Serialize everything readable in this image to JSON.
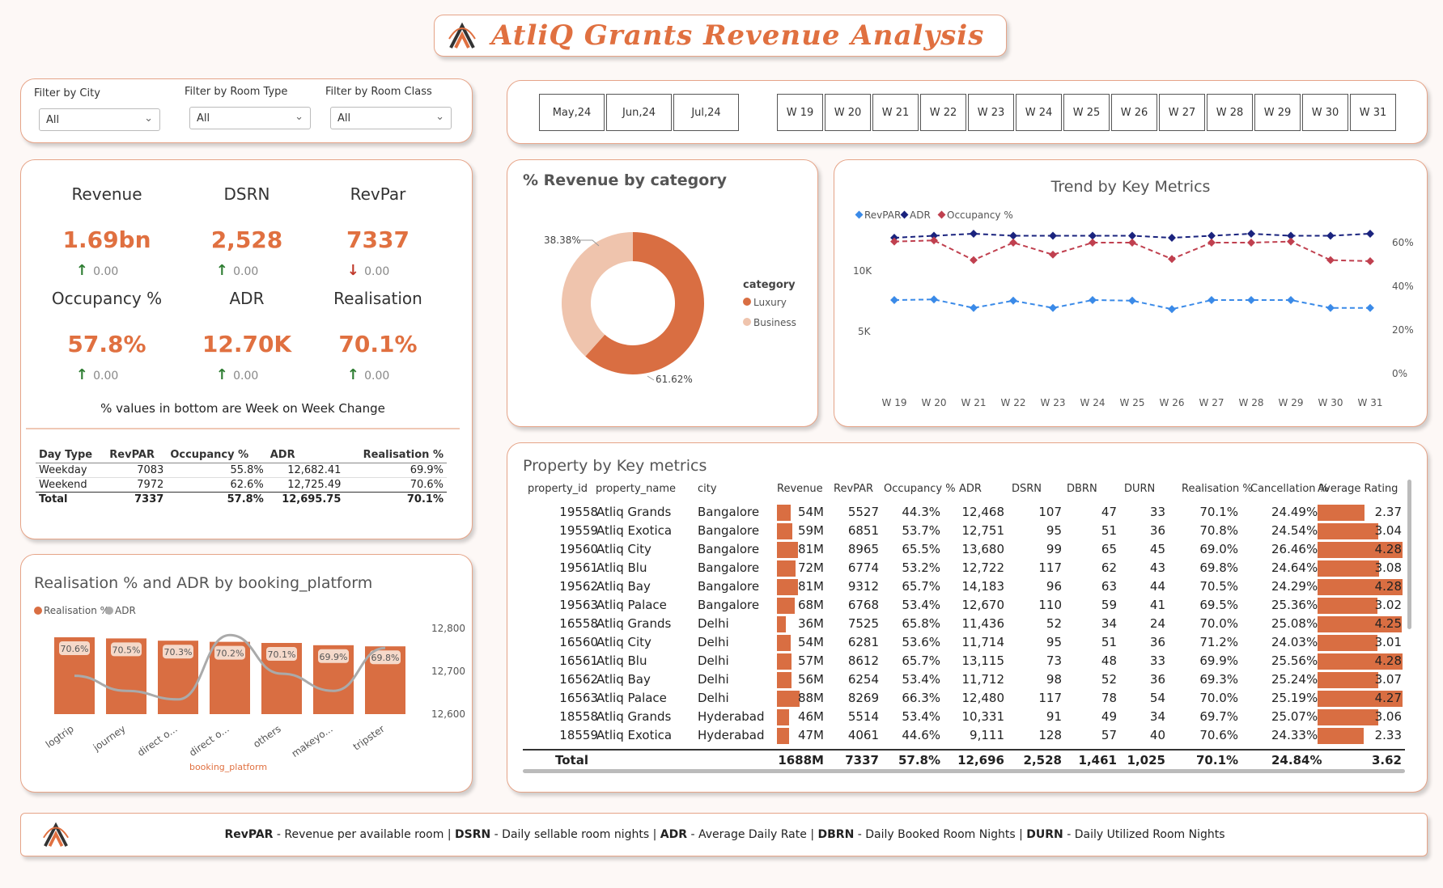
{
  "title": "AtliQ Grants Revenue Analysis",
  "filters": [
    {
      "label": "Filter by City",
      "value": "All"
    },
    {
      "label": "Filter by Room Type",
      "value": "All"
    },
    {
      "label": "Filter by Room Class",
      "value": "All"
    }
  ],
  "months": [
    "May,24",
    "Jun,24",
    "Jul,24"
  ],
  "weeks": [
    "W 19",
    "W 20",
    "W 21",
    "W 22",
    "W 23",
    "W 24",
    "W 25",
    "W 26",
    "W 27",
    "W 28",
    "W 29",
    "W 30",
    "W 31"
  ],
  "kpis": [
    {
      "label": "Revenue",
      "value": "1.69bn",
      "delta": "0.00",
      "dir": "up"
    },
    {
      "label": "DSRN",
      "value": "2,528",
      "delta": "0.00",
      "dir": "up"
    },
    {
      "label": "RevPar",
      "value": "7337",
      "delta": "0.00",
      "dir": "down"
    },
    {
      "label": "Occupancy %",
      "value": "57.8%",
      "delta": "0.00",
      "dir": "up"
    },
    {
      "label": "ADR",
      "value": "12.70K",
      "delta": "0.00",
      "dir": "up"
    },
    {
      "label": "Realisation",
      "value": "70.1%",
      "delta": "0.00",
      "dir": "up"
    }
  ],
  "kpi_note": "% values in bottom are Week on Week Change",
  "daytype_table": {
    "headers": [
      "Day Type",
      "RevPAR",
      "Occupancy %",
      "ADR",
      "Realisation %"
    ],
    "rows": [
      [
        "Weekday",
        "7083",
        "55.8%",
        "12,682.41",
        "69.9%"
      ],
      [
        "Weekend",
        "7972",
        "62.6%",
        "12,725.49",
        "70.6%"
      ]
    ],
    "total": [
      "Total",
      "7337",
      "57.8%",
      "12,695.75",
      "70.1%"
    ]
  },
  "donut": {
    "title": "% Revenue by category",
    "legend_title": "category",
    "slices": [
      {
        "name": "Luxury",
        "pct": 61.62,
        "label": "61.62%",
        "color": "#d96e42"
      },
      {
        "name": "Business",
        "pct": 38.38,
        "label": "38.38%",
        "color": "#efc4ad"
      }
    ]
  },
  "trend": {
    "title": "Trend by Key Metrics",
    "legend": [
      "RevPAR",
      "ADR",
      "Occupancy %"
    ],
    "left_ticks": [
      "10K",
      "5K"
    ],
    "right_ticks": [
      "60%",
      "40%",
      "20%",
      "0%"
    ],
    "colors": {
      "revpar": "#3a8ae8",
      "adr": "#1a237e",
      "occ": "#c0404f"
    },
    "weeks": [
      "W 19",
      "W 20",
      "W 21",
      "W 22",
      "W 23",
      "W 24",
      "W 25",
      "W 26",
      "W 27",
      "W 28",
      "W 29",
      "W 30",
      "W 31"
    ],
    "revpar": [
      7600,
      7650,
      6950,
      7550,
      6950,
      7600,
      7550,
      6850,
      7600,
      7600,
      7600,
      6950,
      6950
    ],
    "adr": [
      12700,
      12750,
      12800,
      12750,
      12750,
      12750,
      12750,
      12700,
      12750,
      12800,
      12750,
      12750,
      12800
    ],
    "occupancy": [
      60.5,
      61.0,
      52.0,
      60.0,
      54.5,
      60.0,
      60.0,
      52.5,
      60.0,
      60.0,
      60.5,
      52.0,
      51.5
    ]
  },
  "platform_chart": {
    "title": "Realisation % and ADR by booking_platform",
    "legend": [
      "Realisation %",
      "ADR"
    ],
    "xlabel": "booking_platform",
    "right_ticks": [
      "12,800",
      "12,700",
      "12,600"
    ],
    "categories": [
      "logtrip",
      "journey",
      "direct o...",
      "direct o...",
      "others",
      "makeyo...",
      "tripster"
    ],
    "realisation": [
      70.6,
      70.5,
      70.3,
      70.2,
      70.1,
      69.9,
      69.8
    ],
    "realisation_labels": [
      "70.6%",
      "70.5%",
      "70.3%",
      "70.2%",
      "70.1%",
      "69.9%",
      "69.8%"
    ],
    "adr": [
      12695,
      12660,
      12640,
      12790,
      12700,
      12660,
      12760
    ]
  },
  "property_table": {
    "title": "Property by Key metrics",
    "headers": [
      "property_id",
      "property_name",
      "city",
      "Revenue",
      "RevPAR",
      "Occupancy %",
      "ADR",
      "DSRN",
      "DBRN",
      "DURN",
      "Realisation %",
      "Cancellation %",
      "Average Rating"
    ],
    "rows": [
      {
        "id": "19558",
        "name": "Atliq Grands",
        "city": "Bangalore",
        "rev": "54M",
        "rev_v": 54,
        "revpar": "5527",
        "occ": "44.3%",
        "adr": "12,468",
        "dsrn": "107",
        "dbrn": "47",
        "durn": "33",
        "real": "70.1%",
        "canc": "24.49%",
        "rating": "2.37",
        "rating_v": 2.37
      },
      {
        "id": "19559",
        "name": "Atliq Exotica",
        "city": "Bangalore",
        "rev": "59M",
        "rev_v": 59,
        "revpar": "6851",
        "occ": "53.7%",
        "adr": "12,751",
        "dsrn": "95",
        "dbrn": "51",
        "durn": "36",
        "real": "70.8%",
        "canc": "24.54%",
        "rating": "3.04",
        "rating_v": 3.04
      },
      {
        "id": "19560",
        "name": "Atliq City",
        "city": "Bangalore",
        "rev": "81M",
        "rev_v": 81,
        "revpar": "8965",
        "occ": "65.5%",
        "adr": "13,680",
        "dsrn": "99",
        "dbrn": "65",
        "durn": "45",
        "real": "69.0%",
        "canc": "26.46%",
        "rating": "4.28",
        "rating_v": 4.28
      },
      {
        "id": "19561",
        "name": "Atliq Blu",
        "city": "Bangalore",
        "rev": "72M",
        "rev_v": 72,
        "revpar": "6774",
        "occ": "53.2%",
        "adr": "12,722",
        "dsrn": "117",
        "dbrn": "62",
        "durn": "43",
        "real": "69.8%",
        "canc": "24.64%",
        "rating": "3.08",
        "rating_v": 3.08
      },
      {
        "id": "19562",
        "name": "Atliq Bay",
        "city": "Bangalore",
        "rev": "81M",
        "rev_v": 81,
        "revpar": "9312",
        "occ": "65.7%",
        "adr": "14,183",
        "dsrn": "96",
        "dbrn": "63",
        "durn": "44",
        "real": "70.5%",
        "canc": "24.29%",
        "rating": "4.28",
        "rating_v": 4.28
      },
      {
        "id": "19563",
        "name": "Atliq Palace",
        "city": "Bangalore",
        "rev": "68M",
        "rev_v": 68,
        "revpar": "6768",
        "occ": "53.4%",
        "adr": "12,670",
        "dsrn": "110",
        "dbrn": "59",
        "durn": "41",
        "real": "69.5%",
        "canc": "25.36%",
        "rating": "3.02",
        "rating_v": 3.02
      },
      {
        "id": "16558",
        "name": "Atliq Grands",
        "city": "Delhi",
        "rev": "36M",
        "rev_v": 36,
        "revpar": "7525",
        "occ": "65.8%",
        "adr": "11,436",
        "dsrn": "52",
        "dbrn": "34",
        "durn": "24",
        "real": "70.0%",
        "canc": "25.08%",
        "rating": "4.25",
        "rating_v": 4.25
      },
      {
        "id": "16560",
        "name": "Atliq City",
        "city": "Delhi",
        "rev": "54M",
        "rev_v": 54,
        "revpar": "6281",
        "occ": "53.6%",
        "adr": "11,714",
        "dsrn": "95",
        "dbrn": "51",
        "durn": "36",
        "real": "71.2%",
        "canc": "24.03%",
        "rating": "3.01",
        "rating_v": 3.01
      },
      {
        "id": "16561",
        "name": "Atliq Blu",
        "city": "Delhi",
        "rev": "57M",
        "rev_v": 57,
        "revpar": "8612",
        "occ": "65.7%",
        "adr": "13,115",
        "dsrn": "73",
        "dbrn": "48",
        "durn": "33",
        "real": "69.9%",
        "canc": "25.56%",
        "rating": "4.28",
        "rating_v": 4.28
      },
      {
        "id": "16562",
        "name": "Atliq Bay",
        "city": "Delhi",
        "rev": "56M",
        "rev_v": 56,
        "revpar": "6254",
        "occ": "53.4%",
        "adr": "11,712",
        "dsrn": "98",
        "dbrn": "52",
        "durn": "36",
        "real": "69.3%",
        "canc": "25.24%",
        "rating": "3.07",
        "rating_v": 3.07
      },
      {
        "id": "16563",
        "name": "Atliq Palace",
        "city": "Delhi",
        "rev": "88M",
        "rev_v": 88,
        "revpar": "8269",
        "occ": "66.3%",
        "adr": "12,480",
        "dsrn": "117",
        "dbrn": "78",
        "durn": "54",
        "real": "70.0%",
        "canc": "25.19%",
        "rating": "4.27",
        "rating_v": 4.27
      },
      {
        "id": "18558",
        "name": "Atliq Grands",
        "city": "Hyderabad",
        "rev": "46M",
        "rev_v": 46,
        "revpar": "5514",
        "occ": "53.4%",
        "adr": "10,331",
        "dsrn": "91",
        "dbrn": "49",
        "durn": "34",
        "real": "69.7%",
        "canc": "25.07%",
        "rating": "3.06",
        "rating_v": 3.06
      },
      {
        "id": "18559",
        "name": "Atliq Exotica",
        "city": "Hyderabad",
        "rev": "47M",
        "rev_v": 47,
        "revpar": "4061",
        "occ": "44.6%",
        "adr": "9,111",
        "dsrn": "128",
        "dbrn": "57",
        "durn": "40",
        "real": "70.6%",
        "canc": "24.33%",
        "rating": "2.33",
        "rating_v": 2.33
      }
    ],
    "total": {
      "label": "Total",
      "rev": "1688M",
      "revpar": "7337",
      "occ": "57.8%",
      "adr": "12,696",
      "dsrn": "2,528",
      "dbrn": "1,461",
      "durn": "1,025",
      "real": "70.1%",
      "canc": "24.84%",
      "rating": "3.62"
    }
  },
  "footer": [
    {
      "term": "RevPAR",
      "desc": " - Revenue per available room | "
    },
    {
      "term": "DSRN",
      "desc": " - Daily sellable room nights | "
    },
    {
      "term": "ADR",
      "desc": " - Average Daily Rate | "
    },
    {
      "term": "DBRN",
      "desc": " - Daily Booked Room Nights | "
    },
    {
      "term": "DURN",
      "desc": " - Daily Utilized Room Nights"
    }
  ]
}
